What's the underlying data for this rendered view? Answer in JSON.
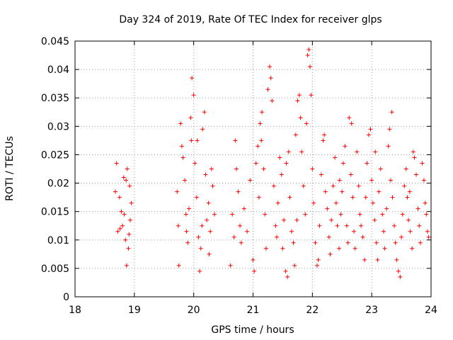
{
  "chart_data": {
    "type": "scatter",
    "title": "Day 324 of 2019, Rate Of TEC Index for receiver glps",
    "xlabel": "GPS time / hours",
    "ylabel": "ROTI / TECUs",
    "xlim": [
      18,
      24
    ],
    "ylim": [
      0,
      0.045
    ],
    "xticks": [
      18,
      19,
      20,
      21,
      22,
      23,
      24
    ],
    "xtick_labels": [
      "18",
      "19",
      "20",
      "21",
      "22",
      "23",
      "24"
    ],
    "yticks": [
      0,
      0.005,
      0.01,
      0.015,
      0.02,
      0.025,
      0.03,
      0.035,
      0.04,
      0.045
    ],
    "ytick_labels": [
      "0",
      "0.005",
      "0.01",
      "0.015",
      "0.02",
      "0.025",
      "0.03",
      "0.035",
      "0.04",
      "0.045"
    ],
    "grid": true,
    "marker": "+",
    "color": "#ff0000",
    "series": [
      {
        "name": "ROTI",
        "points": [
          [
            18.7,
            0.0235
          ],
          [
            18.68,
            0.0185
          ],
          [
            18.72,
            0.0115
          ],
          [
            18.75,
            0.0175
          ],
          [
            18.78,
            0.015
          ],
          [
            18.8,
            0.0125
          ],
          [
            18.82,
            0.021
          ],
          [
            18.85,
            0.01
          ],
          [
            18.87,
            0.0055
          ],
          [
            18.88,
            0.0225
          ],
          [
            18.9,
            0.0085
          ],
          [
            18.92,
            0.0195
          ],
          [
            18.93,
            0.0135
          ],
          [
            18.95,
            0.0165
          ],
          [
            18.83,
            0.0145
          ],
          [
            18.76,
            0.012
          ],
          [
            18.86,
            0.0205
          ],
          [
            18.91,
            0.011
          ],
          [
            19.72,
            0.0185
          ],
          [
            19.74,
            0.0125
          ],
          [
            19.75,
            0.0055
          ],
          [
            19.78,
            0.0305
          ],
          [
            19.8,
            0.0265
          ],
          [
            19.82,
            0.0245
          ],
          [
            19.85,
            0.0205
          ],
          [
            19.87,
            0.0145
          ],
          [
            19.9,
            0.0095
          ],
          [
            19.92,
            0.0155
          ],
          [
            19.95,
            0.0315
          ],
          [
            19.97,
            0.0385
          ],
          [
            20.0,
            0.0355
          ],
          [
            20.02,
            0.0235
          ],
          [
            20.05,
            0.0175
          ],
          [
            20.08,
            0.0105
          ],
          [
            20.1,
            0.0045
          ],
          [
            20.12,
            0.0085
          ],
          [
            20.15,
            0.0295
          ],
          [
            20.18,
            0.0325
          ],
          [
            20.2,
            0.0215
          ],
          [
            20.22,
            0.0135
          ],
          [
            20.25,
            0.0165
          ],
          [
            20.28,
            0.0115
          ],
          [
            20.3,
            0.0225
          ],
          [
            20.32,
            0.0195
          ],
          [
            20.35,
            0.0145
          ],
          [
            19.88,
            0.0115
          ],
          [
            20.06,
            0.0275
          ],
          [
            19.96,
            0.0275
          ],
          [
            20.14,
            0.0125
          ],
          [
            20.26,
            0.0075
          ],
          [
            20.62,
            0.0055
          ],
          [
            20.65,
            0.0145
          ],
          [
            20.68,
            0.0105
          ],
          [
            20.7,
            0.0275
          ],
          [
            20.72,
            0.0225
          ],
          [
            20.75,
            0.0185
          ],
          [
            20.78,
            0.0125
          ],
          [
            20.8,
            0.0095
          ],
          [
            20.85,
            0.0155
          ],
          [
            20.9,
            0.0115
          ],
          [
            20.95,
            0.0205
          ],
          [
            21.0,
            0.0065
          ],
          [
            21.02,
            0.0045
          ],
          [
            21.05,
            0.0235
          ],
          [
            21.08,
            0.0265
          ],
          [
            21.1,
            0.0175
          ],
          [
            21.12,
            0.0305
          ],
          [
            21.15,
            0.0325
          ],
          [
            21.18,
            0.0225
          ],
          [
            21.2,
            0.0145
          ],
          [
            21.22,
            0.0085
          ],
          [
            21.25,
            0.0365
          ],
          [
            21.28,
            0.0405
          ],
          [
            21.3,
            0.0385
          ],
          [
            21.32,
            0.0345
          ],
          [
            21.35,
            0.0195
          ],
          [
            21.38,
            0.0125
          ],
          [
            21.4,
            0.0105
          ],
          [
            21.42,
            0.0165
          ],
          [
            21.45,
            0.0245
          ],
          [
            21.48,
            0.0215
          ],
          [
            21.5,
            0.0085
          ],
          [
            21.52,
            0.0135
          ],
          [
            21.55,
            0.0045
          ],
          [
            21.58,
            0.0035
          ],
          [
            21.6,
            0.0255
          ],
          [
            21.62,
            0.0175
          ],
          [
            21.65,
            0.0115
          ],
          [
            21.68,
            0.0095
          ],
          [
            21.7,
            0.0055
          ],
          [
            21.72,
            0.0285
          ],
          [
            21.75,
            0.0345
          ],
          [
            21.78,
            0.0355
          ],
          [
            21.8,
            0.0315
          ],
          [
            21.82,
            0.0255
          ],
          [
            21.85,
            0.0195
          ],
          [
            21.88,
            0.0145
          ],
          [
            21.9,
            0.0305
          ],
          [
            21.92,
            0.0425
          ],
          [
            21.94,
            0.0435
          ],
          [
            21.96,
            0.0405
          ],
          [
            21.98,
            0.0355
          ],
          [
            22.0,
            0.0225
          ],
          [
            22.02,
            0.0165
          ],
          [
            22.05,
            0.0095
          ],
          [
            22.08,
            0.0055
          ],
          [
            22.1,
            0.0065
          ],
          [
            22.12,
            0.0125
          ],
          [
            22.15,
            0.0215
          ],
          [
            22.18,
            0.0275
          ],
          [
            22.2,
            0.0285
          ],
          [
            22.22,
            0.0185
          ],
          [
            22.25,
            0.0155
          ],
          [
            22.28,
            0.0105
          ],
          [
            22.3,
            0.0075
          ],
          [
            22.32,
            0.0135
          ],
          [
            22.35,
            0.0195
          ],
          [
            22.38,
            0.0245
          ],
          [
            22.4,
            0.0165
          ],
          [
            22.42,
            0.0125
          ],
          [
            22.45,
            0.0085
          ],
          [
            22.48,
            0.0145
          ],
          [
            22.5,
            0.0185
          ],
          [
            22.52,
            0.0235
          ],
          [
            22.55,
            0.0265
          ],
          [
            22.58,
            0.0125
          ],
          [
            22.6,
            0.0095
          ],
          [
            22.62,
            0.0315
          ],
          [
            22.65,
            0.0215
          ],
          [
            22.68,
            0.0175
          ],
          [
            22.7,
            0.0115
          ],
          [
            22.72,
            0.0085
          ],
          [
            22.75,
            0.0255
          ],
          [
            22.78,
            0.0195
          ],
          [
            22.8,
            0.0145
          ],
          [
            22.82,
            0.0125
          ],
          [
            22.85,
            0.0105
          ],
          [
            22.88,
            0.0065
          ],
          [
            22.9,
            0.0175
          ],
          [
            22.92,
            0.0235
          ],
          [
            22.95,
            0.0285
          ],
          [
            22.98,
            0.0295
          ],
          [
            23.0,
            0.0205
          ],
          [
            23.02,
            0.0165
          ],
          [
            23.05,
            0.0135
          ],
          [
            23.08,
            0.0095
          ],
          [
            23.1,
            0.0065
          ],
          [
            23.12,
            0.0185
          ],
          [
            23.15,
            0.0225
          ],
          [
            23.18,
            0.0145
          ],
          [
            23.2,
            0.0115
          ],
          [
            23.22,
            0.0085
          ],
          [
            23.25,
            0.0155
          ],
          [
            23.28,
            0.0265
          ],
          [
            23.3,
            0.0295
          ],
          [
            23.32,
            0.0205
          ],
          [
            23.35,
            0.0175
          ],
          [
            23.38,
            0.0125
          ],
          [
            23.4,
            0.0095
          ],
          [
            23.42,
            0.0065
          ],
          [
            23.45,
            0.0045
          ],
          [
            23.48,
            0.0035
          ],
          [
            23.5,
            0.0105
          ],
          [
            23.52,
            0.0145
          ],
          [
            23.55,
            0.0195
          ],
          [
            23.58,
            0.0225
          ],
          [
            23.6,
            0.0175
          ],
          [
            23.62,
            0.0135
          ],
          [
            23.65,
            0.0115
          ],
          [
            23.68,
            0.0085
          ],
          [
            23.7,
            0.0255
          ],
          [
            23.72,
            0.0245
          ],
          [
            23.75,
            0.0215
          ],
          [
            23.78,
            0.0155
          ],
          [
            23.8,
            0.0125
          ],
          [
            23.82,
            0.0095
          ],
          [
            23.85,
            0.0235
          ],
          [
            23.88,
            0.0205
          ],
          [
            23.9,
            0.0165
          ],
          [
            23.92,
            0.0145
          ],
          [
            23.94,
            0.0115
          ],
          [
            23.96,
            0.0105
          ],
          [
            23.34,
            0.0325
          ],
          [
            22.66,
            0.0305
          ],
          [
            21.56,
            0.0235
          ],
          [
            21.14,
            0.0275
          ],
          [
            21.74,
            0.0135
          ],
          [
            22.46,
            0.0205
          ],
          [
            23.06,
            0.0255
          ],
          [
            23.64,
            0.0185
          ]
        ]
      }
    ]
  }
}
